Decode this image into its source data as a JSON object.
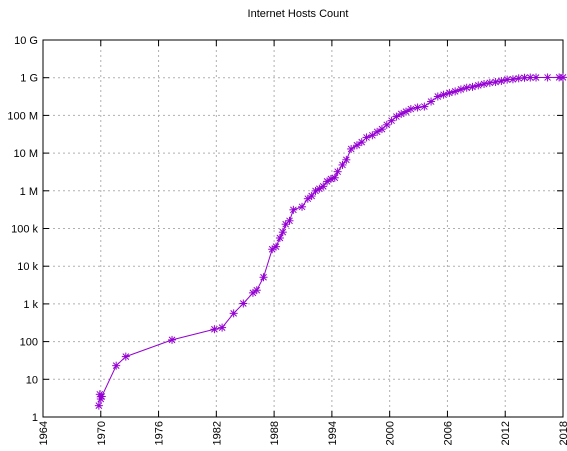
{
  "chart_data": {
    "type": "line",
    "title": "Internet Hosts Count",
    "xlabel": "",
    "ylabel": "",
    "x_ticks": [
      1964,
      1970,
      1976,
      1982,
      1988,
      1994,
      2000,
      2006,
      2012,
      2018
    ],
    "x_tick_labels": [
      "1964",
      "1970",
      "1976",
      "1982",
      "1988",
      "1994",
      "2000",
      "2006",
      "2012",
      "2018"
    ],
    "xlim": [
      1964,
      2018
    ],
    "yscale": "log",
    "ylim": [
      1,
      10000000000
    ],
    "y_ticks": [
      1,
      10,
      100,
      1000,
      10000,
      100000,
      1000000,
      10000000,
      100000000,
      1000000000,
      10000000000
    ],
    "y_tick_labels": [
      "1",
      "10",
      "100",
      "1 k",
      "10 k",
      "100 k",
      "1 M",
      "10 M",
      "100 M",
      "1 G",
      "10 G"
    ],
    "grid": true,
    "series_color": "#9400d3",
    "marker": "asterisk",
    "series": [
      {
        "x": [
          1969.8,
          1969.9,
          1970.0,
          1970.1,
          1971.6,
          1972.6,
          1977.4,
          1981.8,
          1982.6,
          1983.8,
          1984.8,
          1985.8,
          1986.2,
          1986.9,
          1987.8,
          1988.2,
          1988.6,
          1988.9,
          1989.2,
          1989.6,
          1990.0,
          1990.9,
          1991.5,
          1991.9,
          1992.3,
          1992.7,
          1993.1,
          1993.5,
          1993.9,
          1994.3,
          1994.6,
          1995.1,
          1995.5,
          1996.0,
          1996.6,
          1997.1,
          1997.6,
          1998.2,
          1998.7,
          1999.2,
          1999.7,
          2000.2,
          2000.7,
          2001.2,
          2001.7,
          2002.2,
          2002.9,
          2003.6,
          2004.3,
          2005.0,
          2005.6,
          2006.2,
          2006.8,
          2007.4,
          2008.0,
          2008.6,
          2009.2,
          2009.8,
          2010.4,
          2011.0,
          2011.6,
          2012.2,
          2012.8,
          2013.4,
          2014.0,
          2014.6,
          2015.2,
          2016.4,
          2017.6,
          2018.0
        ],
        "y": [
          2,
          4,
          3,
          3.5,
          23,
          40,
          111,
          213,
          235,
          562,
          1024,
          1961,
          2308,
          5089,
          28174,
          33000,
          56000,
          80000,
          130000,
          160000,
          313000,
          376000,
          617000,
          727000,
          992000,
          1136000,
          1313000,
          1776000,
          2056000,
          2217000,
          3212000,
          4852000,
          6642000,
          12881000,
          16146000,
          19540000,
          26053000,
          29670000,
          36739000,
          43230000,
          56218000,
          72398000,
          93047000,
          109574000,
          125888000,
          147344000,
          162128000,
          171638000,
          233101000,
          317646000,
          353284000,
          394991000,
          433193000,
          489774000,
          541677000,
          570937000,
          625226000,
          681064000,
          732740000,
          768913000,
          818374000,
          888239000,
          908585000,
          963518000,
          996230000,
          1010000000,
          1012000000,
          1015000000,
          1018000000,
          1020000000
        ]
      }
    ]
  }
}
